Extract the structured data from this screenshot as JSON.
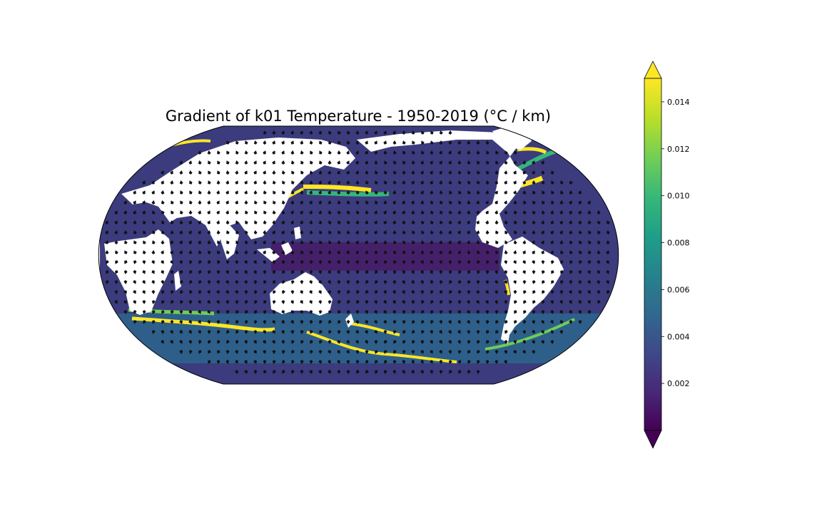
{
  "figure": {
    "title": "Gradient of k01 Temperature - 1950-2019 (°C / km)"
  },
  "map": {
    "projection": "Robinson",
    "central_longitude": 180,
    "field": "temperature gradient magnitude",
    "overlay": "quiver arrows (gradient direction)",
    "land_color": "#ffffff",
    "outline_color": "#000000"
  },
  "colorbar": {
    "colormap": "viridis",
    "orientation": "vertical",
    "extend": "both",
    "vmin": 0.0,
    "vmax": 0.015,
    "ticks": [
      {
        "value": 0.002,
        "label": "0.002"
      },
      {
        "value": 0.004,
        "label": "0.004"
      },
      {
        "value": 0.006,
        "label": "0.006"
      },
      {
        "value": 0.008,
        "label": "0.008"
      },
      {
        "value": 0.01,
        "label": "0.010"
      },
      {
        "value": 0.012,
        "label": "0.012"
      },
      {
        "value": 0.014,
        "label": "0.014"
      }
    ],
    "stops": [
      "#440154",
      "#482878",
      "#3e4989",
      "#31688e",
      "#26828e",
      "#1f9e89",
      "#35b779",
      "#6ece58",
      "#b5de2b",
      "#fde725"
    ]
  }
}
